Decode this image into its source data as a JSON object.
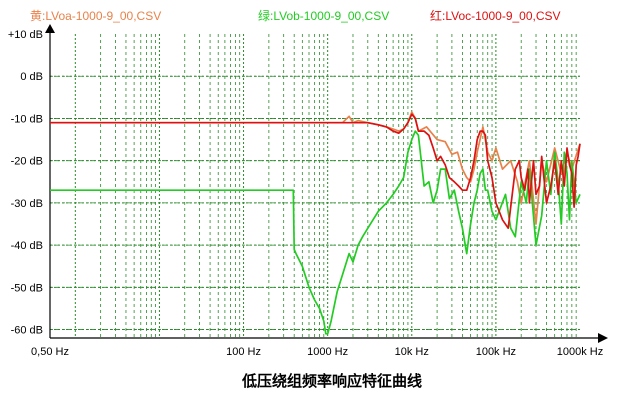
{
  "chart_data": {
    "type": "line",
    "title": "低压绕组频率响应特征曲线",
    "x_scale": "log",
    "xlim": [
      0.5,
      1000000
    ],
    "ylim": [
      -62,
      10
    ],
    "grid": true,
    "legend_placement": "top",
    "x_ticks": [
      {
        "value": 0.5,
        "label": "0,50 Hz"
      },
      {
        "value": 100,
        "label": "100 Hz"
      },
      {
        "value": 1000,
        "label": "1000 Hz"
      },
      {
        "value": 10000,
        "label": "10k Hz"
      },
      {
        "value": 100000,
        "label": "100k Hz"
      },
      {
        "value": 1000000,
        "label": "1000k Hz"
      }
    ],
    "y_ticks": [
      {
        "value": 10,
        "label": "+10 dB"
      },
      {
        "value": 0,
        "label": "0 dB"
      },
      {
        "value": -10,
        "label": "-10 dB"
      },
      {
        "value": -20,
        "label": "-20 dB"
      },
      {
        "value": -30,
        "label": "-30 dB"
      },
      {
        "value": -40,
        "label": "-40 dB"
      },
      {
        "value": -50,
        "label": "-50 dB"
      },
      {
        "value": -60,
        "label": "-60 dB"
      }
    ],
    "legend": [
      {
        "label": "黄:LVoa-1000-9_00,CSV",
        "color": "#e8824a"
      },
      {
        "label": "绿:LVob-1000-9_00,CSV",
        "color": "#22cc22"
      },
      {
        "label": "红:LVoc-1000-9_00,CSV",
        "color": "#dd1111"
      }
    ],
    "series": [
      {
        "name": "黄:LVoa-1000-9_00,CSV",
        "color": "#e8824a",
        "x": [
          0.5,
          10,
          100,
          1000,
          1500,
          1800,
          2000,
          2300,
          3000,
          4000,
          5000,
          6000,
          7000,
          8000,
          9000,
          10000,
          11000,
          12000,
          15000,
          20000,
          25000,
          30000,
          35000,
          40000,
          45000,
          50000,
          55000,
          60000,
          70000,
          80000,
          90000,
          100000,
          120000,
          150000,
          180000,
          200000,
          250000,
          300000,
          350000,
          400000,
          500000,
          600000,
          700000,
          800000,
          1000000
        ],
        "y": [
          -11,
          -11,
          -11,
          -11,
          -11,
          -9.5,
          -11,
          -10.5,
          -11,
          -11.5,
          -12,
          -12.5,
          -13,
          -12.5,
          -11,
          -8.5,
          -10,
          -13,
          -12,
          -15,
          -15.5,
          -18.5,
          -18,
          -22,
          -24,
          -25,
          -22,
          -18,
          -12,
          -18,
          -20,
          -17,
          -22,
          -20,
          -25,
          -30,
          -20,
          -35,
          -20,
          -25,
          -17,
          -23,
          -18,
          -22,
          -16
        ]
      },
      {
        "name": "绿:LVob-1000-9_00,CSV",
        "color": "#22cc22",
        "x": [
          0.5,
          10,
          100,
          390,
          400,
          420,
          500,
          600,
          700,
          800,
          900,
          950,
          1000,
          1100,
          1300,
          1500,
          1800,
          2000,
          2300,
          2600,
          3000,
          4000,
          5000,
          6000,
          7000,
          8000,
          9000,
          10000,
          11000,
          12000,
          14000,
          16000,
          18000,
          20000,
          22000,
          25000,
          28000,
          32000,
          36000,
          40000,
          45000,
          50000,
          55000,
          60000,
          65000,
          70000,
          75000,
          80000,
          90000,
          100000,
          130000,
          150000,
          170000,
          200000,
          230000,
          250000,
          300000,
          350000,
          400000,
          450000,
          500000,
          550000,
          600000,
          650000,
          700000,
          750000,
          800000,
          900000,
          1000000
        ],
        "y": [
          -27,
          -27,
          -27,
          -27,
          -41,
          -42,
          -45,
          -50,
          -53,
          -55,
          -58,
          -61,
          -61,
          -58,
          -51,
          -47,
          -42,
          -44,
          -40,
          -38,
          -36,
          -32,
          -30,
          -28,
          -26,
          -24,
          -18,
          -15,
          -13,
          -14,
          -26,
          -25,
          -30,
          -27,
          -22,
          -22,
          -29,
          -27,
          -32,
          -36,
          -42,
          -35,
          -30,
          -27,
          -23,
          -22,
          -27,
          -27,
          -32,
          -34,
          -28,
          -36,
          -38,
          -25,
          -30,
          -22,
          -40,
          -33,
          -20,
          -28,
          -18,
          -25,
          -35,
          -18,
          -23,
          -34,
          -20,
          -30,
          -28
        ]
      },
      {
        "name": "红:LVoc-1000-9_00,CSV",
        "color": "#dd1111",
        "x": [
          0.5,
          10,
          100,
          1000,
          2000,
          3000,
          4000,
          5000,
          6000,
          7000,
          8000,
          9000,
          10000,
          11000,
          12000,
          14000,
          16000,
          18000,
          20000,
          22000,
          25000,
          28000,
          32000,
          36000,
          40000,
          45000,
          50000,
          55000,
          60000,
          65000,
          70000,
          75000,
          80000,
          90000,
          100000,
          120000,
          140000,
          150000,
          170000,
          190000,
          200000,
          220000,
          240000,
          250000,
          280000,
          300000,
          330000,
          350000,
          400000,
          450000,
          500000,
          550000,
          600000,
          650000,
          700000,
          750000,
          800000,
          850000,
          900000,
          950000,
          1000000
        ],
        "y": [
          -11,
          -11,
          -11,
          -11,
          -11,
          -11,
          -11.5,
          -12,
          -13,
          -13.5,
          -12.5,
          -11,
          -9,
          -10,
          -13,
          -13,
          -14,
          -17,
          -20,
          -19,
          -21,
          -24,
          -25,
          -26,
          -27,
          -27,
          -24,
          -20,
          -15,
          -13,
          -13,
          -14,
          -20,
          -24,
          -30,
          -34,
          -36,
          -31,
          -22,
          -20,
          -24,
          -27,
          -22,
          -30,
          -20,
          -28,
          -26,
          -19,
          -30,
          -26,
          -20,
          -28,
          -20,
          -26,
          -17,
          -21,
          -23,
          -31,
          -21,
          -19,
          -16
        ]
      }
    ]
  }
}
